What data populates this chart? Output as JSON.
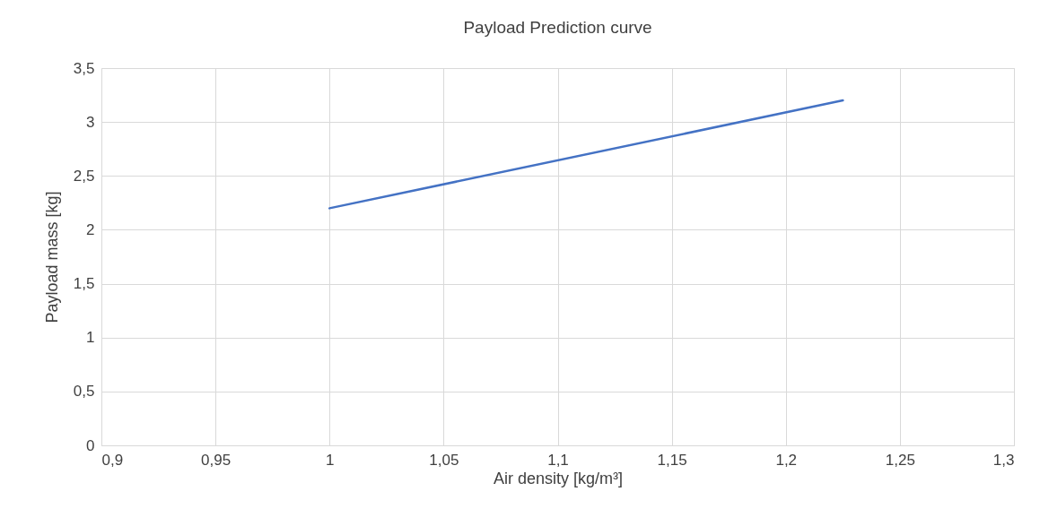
{
  "chart_data": {
    "type": "line",
    "title": "Payload Prediction curve",
    "xlabel": "Air density [kg/m³]",
    "ylabel": "Payload mass [kg]",
    "x": [
      1,
      1.225
    ],
    "series": [
      {
        "color": "#4472c4",
        "values": [
          2.2,
          3.2
        ]
      }
    ],
    "xlim": [
      0.9,
      1.3
    ],
    "xticks": [
      {
        "value": 0.9,
        "label": "0,9"
      },
      {
        "value": 0.95,
        "label": "0,95"
      },
      1,
      {
        "value": 1.05,
        "label": "1,05"
      },
      {
        "value": 1.1,
        "label": "1,1"
      },
      {
        "value": 1.15,
        "label": "1,15"
      },
      {
        "value": 1.2,
        "label": "1,2"
      },
      {
        "value": 1.25,
        "label": "1,25"
      },
      {
        "value": 1.3,
        "label": "1,3"
      }
    ],
    "ylim": [
      0,
      3.5
    ],
    "yticks": [
      0,
      {
        "value": 0.5,
        "label": "0,5"
      },
      1,
      {
        "value": 1.5,
        "label": "1,5"
      },
      2,
      {
        "value": 2.5,
        "label": "2,5"
      },
      3,
      {
        "value": 3.5,
        "label": "3,5"
      }
    ],
    "grid": true,
    "marker": "none",
    "line_style": "solid"
  }
}
